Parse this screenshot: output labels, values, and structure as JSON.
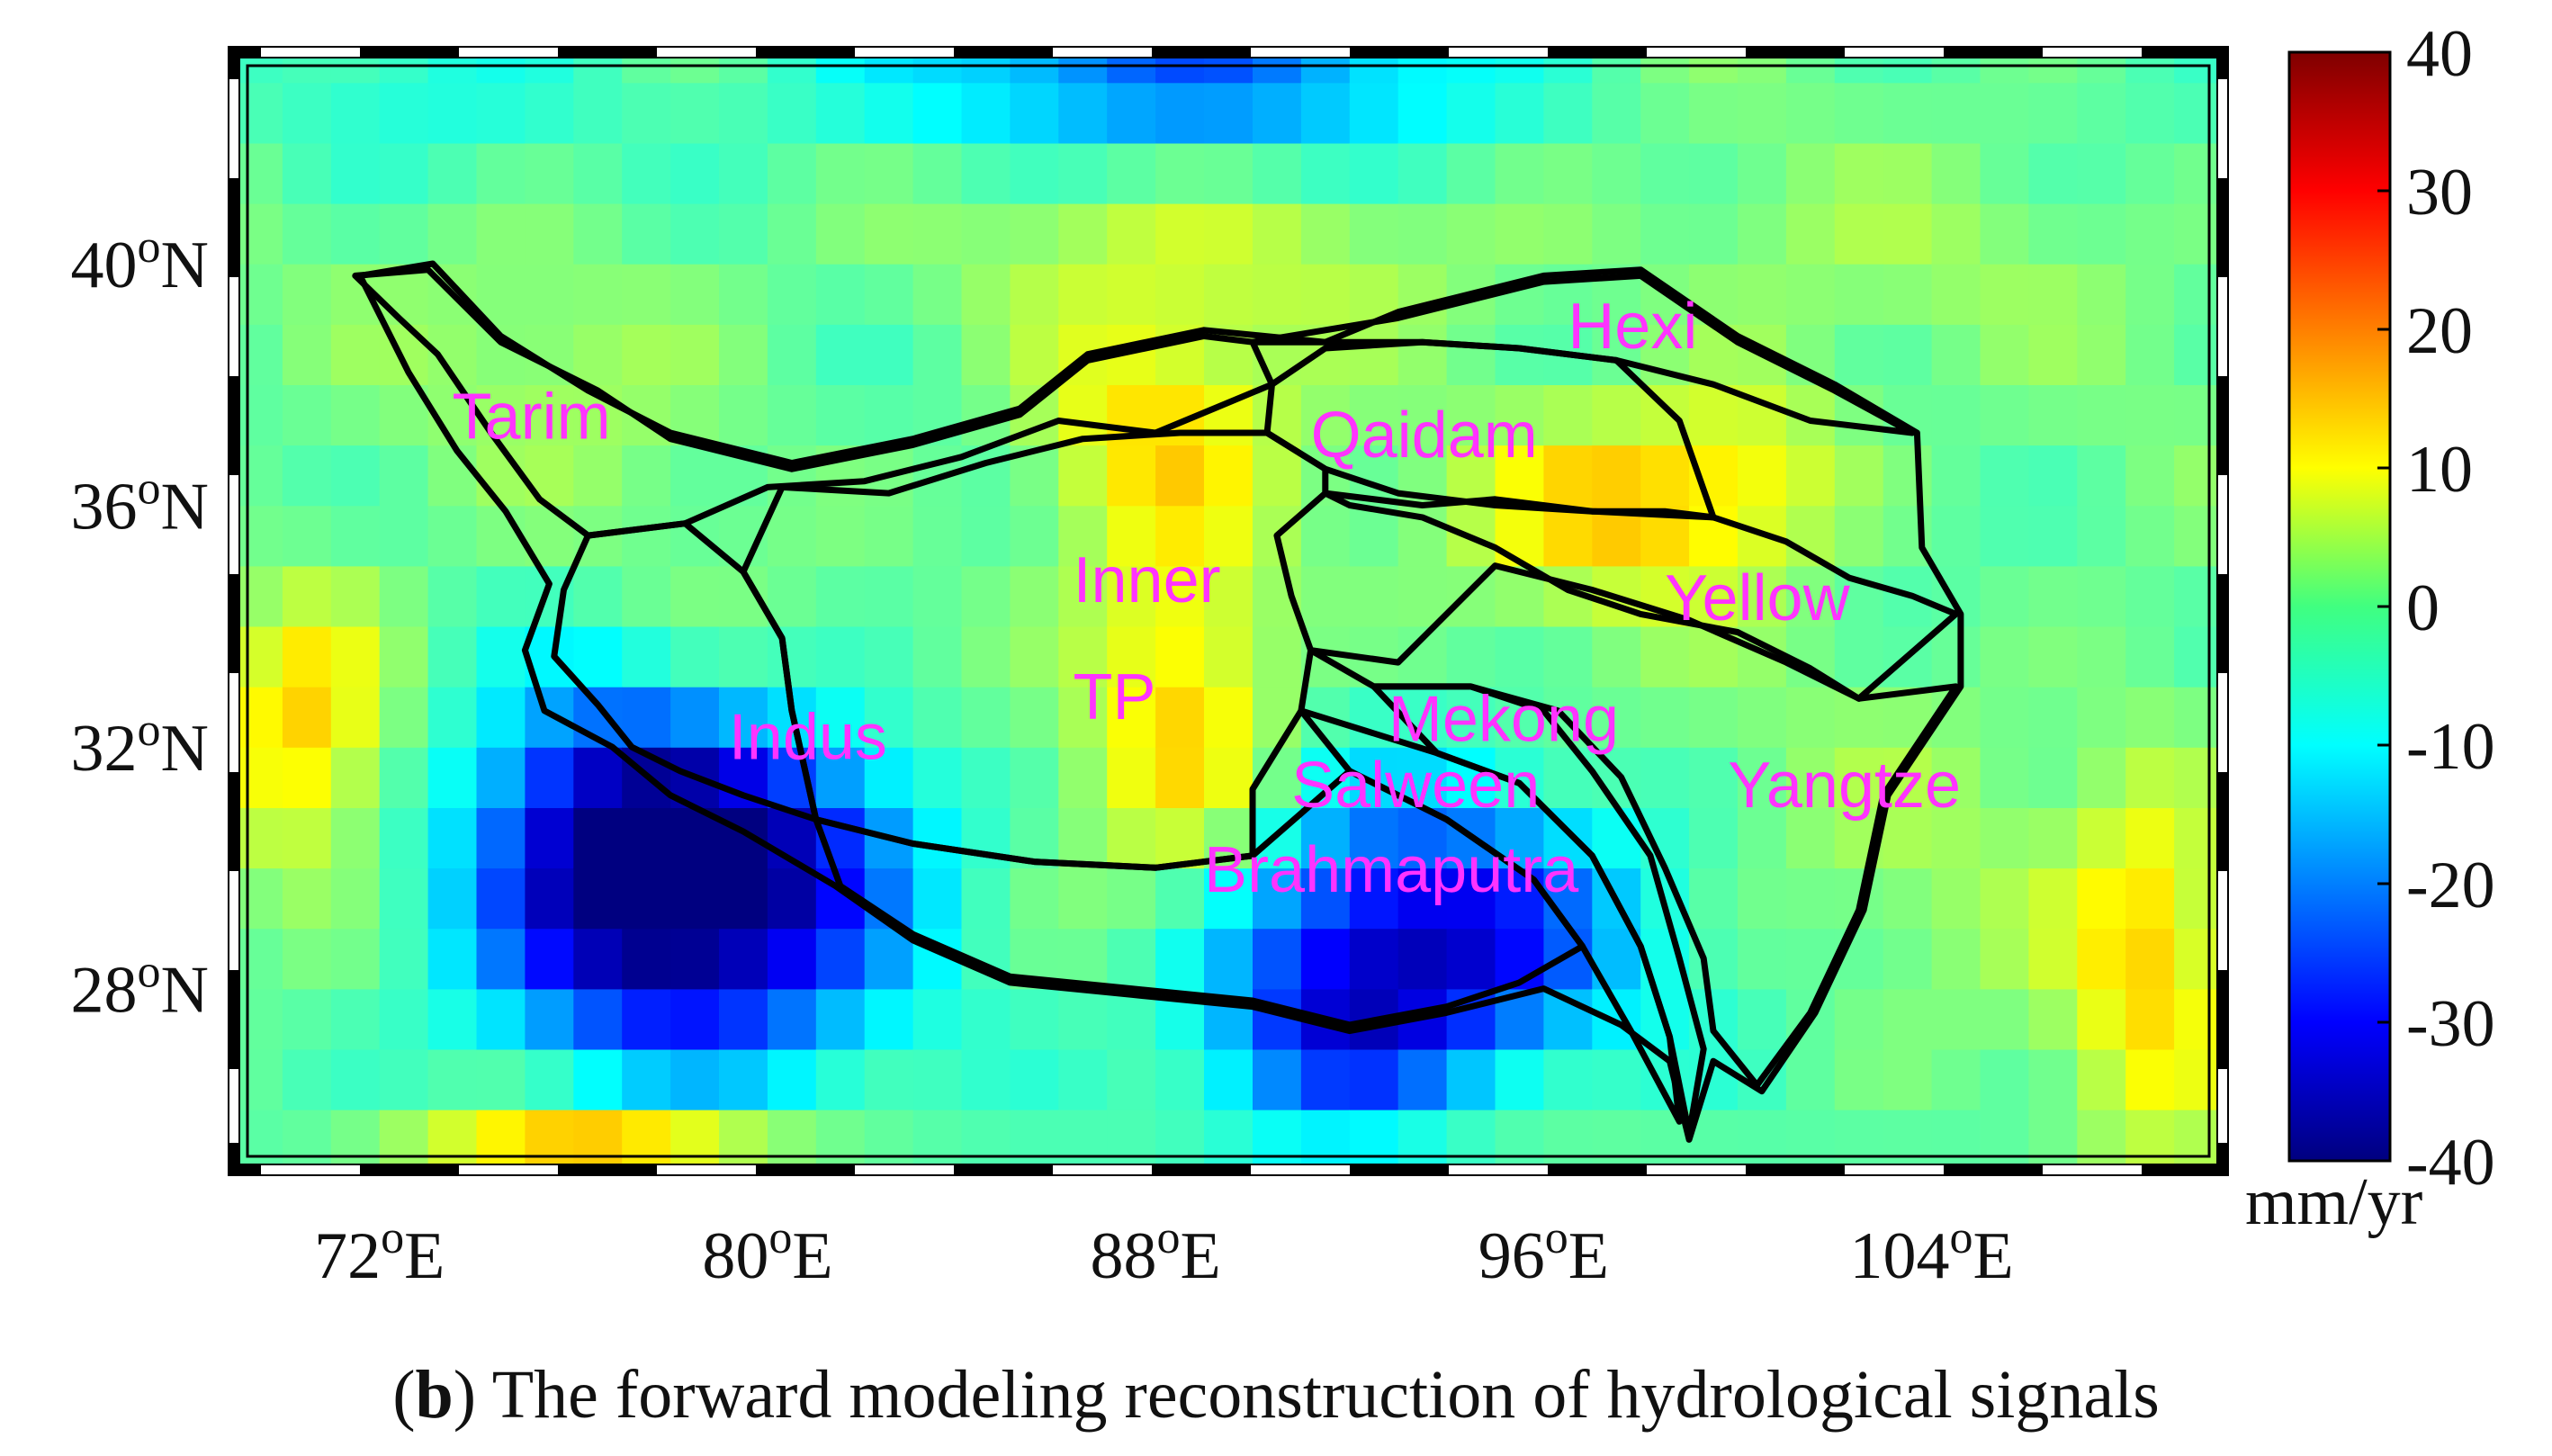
{
  "map": {
    "type": "gridded-map",
    "extent": {
      "lon": [
        69,
        110
      ],
      "lat": [
        25,
        43.5
      ]
    },
    "x_ticks": [
      {
        "lon": 72,
        "label": "72°E"
      },
      {
        "lon": 80,
        "label": "80°E"
      },
      {
        "lon": 88,
        "label": "88°E"
      },
      {
        "lon": 96,
        "label": "96°E"
      },
      {
        "lon": 104,
        "label": "104°E"
      }
    ],
    "y_ticks": [
      {
        "lat": 40,
        "label": "40°N"
      },
      {
        "lat": 36,
        "label": "36°N"
      },
      {
        "lat": 32,
        "label": "32°N"
      },
      {
        "lat": 28,
        "label": "28°N"
      }
    ],
    "colorbar": {
      "min": -40,
      "max": 40,
      "ticks": [
        "40",
        "30",
        "20",
        "10",
        "0",
        "-10",
        "-20",
        "-30",
        "-40"
      ],
      "unit": "mm/yr",
      "colormap": "jet"
    },
    "anomalies": [
      {
        "lon": 78,
        "lat": 29.2,
        "slon": 2.9,
        "slat": 1.9,
        "amp": -38
      },
      {
        "lon": 76.5,
        "lat": 31.3,
        "slon": 1.6,
        "slat": 1.4,
        "amp": -14
      },
      {
        "lon": 80.5,
        "lat": 30.8,
        "slon": 2.2,
        "slat": 1.3,
        "amp": -12
      },
      {
        "lon": 93.5,
        "lat": 28.8,
        "slon": 2.8,
        "slat": 1.6,
        "amp": -32
      },
      {
        "lon": 91.5,
        "lat": 27.0,
        "slon": 1.8,
        "slat": 1.1,
        "amp": -16
      },
      {
        "lon": 88,
        "lat": 43.2,
        "slon": 4.5,
        "slat": 1.0,
        "amp": -20
      },
      {
        "lon": 72,
        "lat": 42.8,
        "slon": 2.5,
        "slat": 1.2,
        "amp": -5
      },
      {
        "lon": 87.8,
        "lat": 37.3,
        "slon": 1.8,
        "slat": 1.3,
        "amp": 13
      },
      {
        "lon": 88.6,
        "lat": 32.0,
        "slon": 1.4,
        "slat": 1.7,
        "amp": 14
      },
      {
        "lon": 88.5,
        "lat": 34.8,
        "slon": 1.5,
        "slat": 1.5,
        "amp": 8
      },
      {
        "lon": 97.7,
        "lat": 36.0,
        "slon": 2.1,
        "slat": 1.1,
        "amp": 16
      },
      {
        "lon": 100.5,
        "lat": 36.8,
        "slon": 1.4,
        "slat": 1.2,
        "amp": 8
      },
      {
        "lon": 70.5,
        "lat": 32.5,
        "slon": 1.3,
        "slat": 1.6,
        "amp": 16
      },
      {
        "lon": 108.5,
        "lat": 28.6,
        "slon": 1.2,
        "slat": 2.4,
        "amp": 14
      },
      {
        "lon": 76.5,
        "lat": 25.2,
        "slon": 2.6,
        "slat": 0.6,
        "amp": 22
      },
      {
        "lon": 90,
        "lat": 40.2,
        "slon": 5.0,
        "slat": 1.0,
        "amp": 6
      },
      {
        "lon": 103,
        "lat": 40.0,
        "slon": 3.5,
        "slat": 1.0,
        "amp": 3
      },
      {
        "lon": 104,
        "lat": 30.5,
        "slon": 2.5,
        "slat": 2.5,
        "amp": 3
      },
      {
        "lon": 76,
        "lat": 38.5,
        "slon": 2.5,
        "slat": 1.5,
        "amp": 4
      }
    ],
    "basins": [
      {
        "name": "Tarim",
        "label_lon": 73.5,
        "label_lat": 37.1,
        "outline": [
          [
            71.5,
            39.8
          ],
          [
            73.0,
            39.9
          ],
          [
            74.5,
            38.7
          ],
          [
            76.5,
            37.9
          ],
          [
            78.0,
            37.1
          ],
          [
            80.5,
            36.6
          ],
          [
            83.0,
            37.0
          ],
          [
            85.2,
            37.5
          ],
          [
            86.6,
            38.4
          ],
          [
            89.0,
            38.8
          ],
          [
            90.0,
            38.7
          ],
          [
            90.4,
            38.0
          ],
          [
            89.2,
            37.6
          ],
          [
            88.0,
            37.2
          ],
          [
            86.0,
            37.4
          ],
          [
            84.0,
            36.8
          ],
          [
            82.0,
            36.4
          ],
          [
            80.0,
            36.3
          ],
          [
            78.3,
            35.7
          ],
          [
            76.3,
            35.5
          ],
          [
            75.3,
            36.1
          ],
          [
            74.3,
            37.2
          ],
          [
            73.2,
            38.5
          ],
          [
            72.4,
            39.1
          ],
          [
            71.5,
            39.8
          ]
        ]
      },
      {
        "name": "Hexi",
        "label_lon": 96.5,
        "label_lat": 38.6,
        "outline": [
          [
            90.0,
            38.7
          ],
          [
            93.0,
            39.1
          ],
          [
            96.0,
            39.7
          ],
          [
            98.0,
            39.8
          ],
          [
            100.0,
            38.7
          ],
          [
            102.0,
            37.9
          ],
          [
            103.6,
            37.2
          ],
          [
            101.5,
            37.4
          ],
          [
            99.5,
            38.0
          ],
          [
            97.5,
            38.4
          ],
          [
            95.5,
            38.6
          ],
          [
            93.5,
            38.7
          ],
          [
            91.0,
            38.7
          ],
          [
            90.0,
            38.7
          ]
        ]
      },
      {
        "name": "Qaidam",
        "label_lon": 91.2,
        "label_lat": 36.8,
        "outline": [
          [
            90.4,
            38.0
          ],
          [
            91.5,
            38.6
          ],
          [
            93.5,
            38.7
          ],
          [
            95.5,
            38.6
          ],
          [
            97.5,
            38.4
          ],
          [
            98.8,
            37.4
          ],
          [
            99.5,
            35.8
          ],
          [
            98.5,
            35.9
          ],
          [
            97.0,
            35.9
          ],
          [
            95.0,
            36.0
          ],
          [
            93.0,
            36.2
          ],
          [
            91.5,
            36.6
          ],
          [
            90.3,
            37.2
          ],
          [
            90.4,
            38.0
          ]
        ]
      },
      {
        "name": "Yellow",
        "label_lon": 98.5,
        "label_lat": 34.1,
        "outline": [
          [
            91.5,
            36.2
          ],
          [
            93.5,
            36.0
          ],
          [
            95.0,
            36.1
          ],
          [
            97.0,
            35.9
          ],
          [
            99.5,
            35.8
          ],
          [
            101.0,
            35.4
          ],
          [
            102.3,
            34.8
          ],
          [
            103.6,
            34.5
          ],
          [
            104.5,
            34.2
          ],
          [
            103.5,
            33.5
          ],
          [
            102.5,
            32.8
          ],
          [
            101.5,
            33.3
          ],
          [
            100.0,
            33.9
          ],
          [
            98.0,
            34.2
          ],
          [
            96.5,
            34.6
          ],
          [
            95.0,
            35.3
          ],
          [
            93.5,
            35.8
          ],
          [
            92.0,
            36.0
          ],
          [
            91.5,
            36.2
          ]
        ]
      },
      {
        "name": "Yangtze",
        "label_lon": 99.8,
        "label_lat": 31.0,
        "outline": [
          [
            91.2,
            33.6
          ],
          [
            93.0,
            33.4
          ],
          [
            95.0,
            35.0
          ],
          [
            97.0,
            34.6
          ],
          [
            99.0,
            34.1
          ],
          [
            101.0,
            33.4
          ],
          [
            102.5,
            32.8
          ],
          [
            104.5,
            33.0
          ],
          [
            103.0,
            31.2
          ],
          [
            102.5,
            29.3
          ],
          [
            101.5,
            27.6
          ],
          [
            100.4,
            26.4
          ],
          [
            99.5,
            27.3
          ],
          [
            99.3,
            28.5
          ],
          [
            98.5,
            30.0
          ],
          [
            97.6,
            31.5
          ],
          [
            96.3,
            32.6
          ],
          [
            94.5,
            33.0
          ],
          [
            92.5,
            33.0
          ],
          [
            91.2,
            33.6
          ]
        ]
      },
      {
        "name": "Mekong",
        "label_lon": 92.8,
        "label_lat": 32.1,
        "outline": [
          [
            92.5,
            33.0
          ],
          [
            94.5,
            33.0
          ],
          [
            96.0,
            32.6
          ],
          [
            97.0,
            31.6
          ],
          [
            98.2,
            30.2
          ],
          [
            98.8,
            28.5
          ],
          [
            99.3,
            27.0
          ],
          [
            99.0,
            25.6
          ],
          [
            98.6,
            27.2
          ],
          [
            98.0,
            28.7
          ],
          [
            97.0,
            30.2
          ],
          [
            95.5,
            31.4
          ],
          [
            93.8,
            31.9
          ],
          [
            92.5,
            33.0
          ]
        ]
      },
      {
        "name": "Salween",
        "label_lon": 90.8,
        "label_lat": 31.0,
        "outline": [
          [
            91.0,
            32.6
          ],
          [
            93.8,
            31.9
          ],
          [
            95.5,
            31.4
          ],
          [
            97.0,
            30.2
          ],
          [
            98.0,
            28.7
          ],
          [
            98.6,
            27.2
          ],
          [
            98.8,
            25.8
          ],
          [
            97.8,
            27.3
          ],
          [
            96.8,
            28.7
          ],
          [
            95.8,
            29.8
          ],
          [
            94.0,
            30.8
          ],
          [
            92.0,
            31.6
          ],
          [
            91.0,
            32.6
          ]
        ]
      },
      {
        "name": "Brahmaputra",
        "label_lon": 89.0,
        "label_lat": 29.6,
        "outline": [
          [
            81.0,
            30.8
          ],
          [
            83.0,
            30.4
          ],
          [
            85.5,
            30.1
          ],
          [
            88.0,
            30.0
          ],
          [
            90.0,
            30.2
          ],
          [
            92.0,
            31.6
          ],
          [
            94.0,
            30.8
          ],
          [
            95.8,
            29.8
          ],
          [
            96.8,
            28.7
          ],
          [
            95.5,
            28.1
          ],
          [
            94.0,
            27.7
          ],
          [
            92.0,
            27.4
          ],
          [
            90.0,
            27.8
          ],
          [
            87.5,
            28.0
          ],
          [
            85.0,
            28.2
          ],
          [
            83.0,
            28.9
          ],
          [
            81.5,
            29.7
          ],
          [
            81.0,
            30.8
          ]
        ]
      },
      {
        "name": "Indus",
        "label_lon": 79.2,
        "label_lat": 31.8,
        "outline": [
          [
            76.3,
            35.5
          ],
          [
            78.3,
            35.7
          ],
          [
            79.5,
            34.9
          ],
          [
            80.3,
            33.8
          ],
          [
            80.5,
            32.6
          ],
          [
            81.0,
            30.8
          ],
          [
            79.5,
            31.2
          ],
          [
            78.2,
            31.6
          ],
          [
            77.2,
            32.0
          ],
          [
            76.5,
            32.7
          ],
          [
            75.6,
            33.5
          ],
          [
            75.8,
            34.6
          ],
          [
            76.3,
            35.5
          ]
        ]
      },
      {
        "name": "Inner\nTP",
        "label_lon": 86.3,
        "label_lat": 34.4,
        "outline": [
          [
            80.3,
            36.3
          ],
          [
            82.5,
            36.2
          ],
          [
            84.5,
            36.7
          ],
          [
            86.5,
            37.1
          ],
          [
            88.5,
            37.2
          ],
          [
            90.3,
            37.2
          ],
          [
            91.5,
            36.6
          ],
          [
            91.5,
            36.2
          ],
          [
            90.5,
            35.5
          ],
          [
            90.8,
            34.5
          ],
          [
            91.2,
            33.6
          ],
          [
            91.0,
            32.6
          ],
          [
            90.0,
            31.3
          ],
          [
            90.0,
            30.2
          ],
          [
            88.0,
            30.0
          ],
          [
            85.5,
            30.1
          ],
          [
            83.0,
            30.4
          ],
          [
            81.0,
            30.8
          ],
          [
            80.5,
            32.6
          ],
          [
            80.3,
            33.8
          ],
          [
            79.5,
            34.9
          ],
          [
            80.3,
            36.3
          ]
        ]
      },
      {
        "name": "",
        "label_lon": null,
        "label_lat": null,
        "outline": [
          [
            71.6,
            39.8
          ],
          [
            73.1,
            40.0
          ],
          [
            74.5,
            38.8
          ],
          [
            76.3,
            37.9
          ],
          [
            78.0,
            37.2
          ],
          [
            80.5,
            36.7
          ],
          [
            83.0,
            37.1
          ],
          [
            85.2,
            37.6
          ],
          [
            86.6,
            38.5
          ],
          [
            89.0,
            38.9
          ],
          [
            91.5,
            38.7
          ],
          [
            93.0,
            39.2
          ],
          [
            96.0,
            39.8
          ],
          [
            98.0,
            39.9
          ],
          [
            100.0,
            38.8
          ],
          [
            102.0,
            38.0
          ],
          [
            103.7,
            37.2
          ],
          [
            103.8,
            35.3
          ],
          [
            104.6,
            34.2
          ],
          [
            104.6,
            33.0
          ],
          [
            103.1,
            31.2
          ],
          [
            102.6,
            29.3
          ],
          [
            101.6,
            27.6
          ],
          [
            100.5,
            26.3
          ],
          [
            99.5,
            26.8
          ],
          [
            99.0,
            25.5
          ],
          [
            98.6,
            26.8
          ],
          [
            97.6,
            27.4
          ],
          [
            96.0,
            28.0
          ],
          [
            94.0,
            27.6
          ],
          [
            92.0,
            27.3
          ],
          [
            90.0,
            27.7
          ],
          [
            87.5,
            27.9
          ],
          [
            85.0,
            28.1
          ],
          [
            83.0,
            28.8
          ],
          [
            81.4,
            29.7
          ],
          [
            79.5,
            30.6
          ],
          [
            78.0,
            31.2
          ],
          [
            76.8,
            32.0
          ],
          [
            75.4,
            32.6
          ],
          [
            75.0,
            33.6
          ],
          [
            75.5,
            34.7
          ],
          [
            74.6,
            35.9
          ],
          [
            73.6,
            36.9
          ],
          [
            72.6,
            38.2
          ],
          [
            71.6,
            39.8
          ]
        ]
      }
    ],
    "colors": {
      "region_label": "#ff33ff",
      "outline": "#000000"
    }
  },
  "caption": {
    "letter": "b",
    "text": " The forward modeling reconstruction of hydrological signals"
  }
}
